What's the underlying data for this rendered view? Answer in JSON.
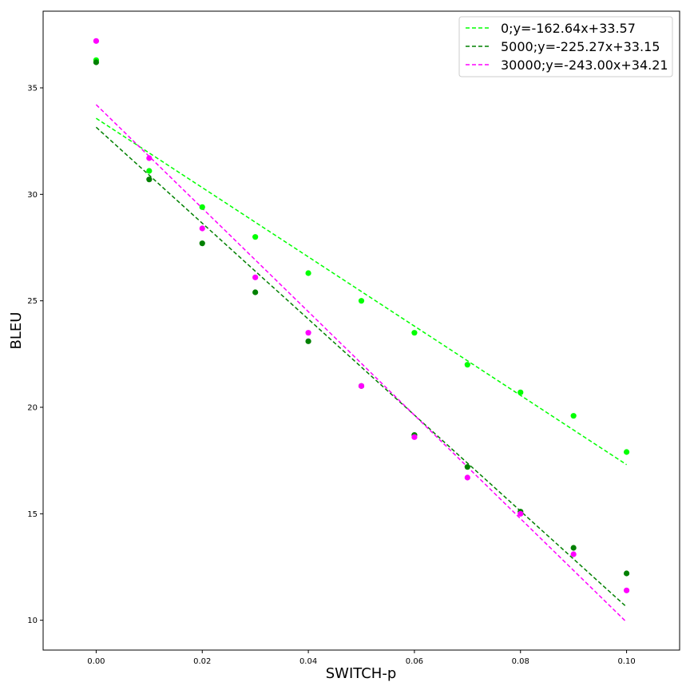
{
  "chart_data": {
    "type": "scatter",
    "title": "",
    "xlabel": "SWITCH-p",
    "ylabel": "BLEU",
    "xlim": [
      -0.01,
      0.11
    ],
    "ylim": [
      8.6,
      38.6
    ],
    "x_ticks": [
      "0.00",
      "0.02",
      "0.04",
      "0.06",
      "0.08",
      "0.10"
    ],
    "x_tick_values": [
      0.0,
      0.02,
      0.04,
      0.06,
      0.08,
      0.1
    ],
    "y_ticks": [
      "10",
      "15",
      "20",
      "25",
      "30",
      "35"
    ],
    "y_tick_values": [
      10,
      15,
      20,
      25,
      30,
      35
    ],
    "grid": false,
    "legend_position": "top-right",
    "x": [
      0.0,
      0.01,
      0.02,
      0.03,
      0.04,
      0.05,
      0.06,
      0.07,
      0.08,
      0.09,
      0.1
    ],
    "series": [
      {
        "name": "0;y=-162.64x+33.57",
        "color": "#00ff00",
        "values": [
          36.3,
          31.1,
          29.4,
          28.0,
          26.3,
          25.0,
          23.5,
          22.0,
          20.7,
          19.6,
          17.9
        ],
        "fit": {
          "slope": -162.64,
          "intercept": 33.57
        }
      },
      {
        "name": "5000;y=-225.27x+33.15",
        "color": "#008000",
        "values": [
          36.2,
          30.7,
          27.7,
          25.4,
          23.1,
          21.0,
          18.7,
          17.2,
          15.1,
          13.4,
          12.2
        ],
        "fit": {
          "slope": -225.27,
          "intercept": 33.15
        }
      },
      {
        "name": "30000;y=-243.00x+34.21",
        "color": "#ff00ff",
        "values": [
          37.2,
          31.7,
          28.4,
          26.1,
          23.5,
          21.0,
          18.6,
          16.7,
          15.0,
          13.1,
          11.4
        ],
        "fit": {
          "slope": -243.0,
          "intercept": 34.21
        }
      }
    ]
  }
}
